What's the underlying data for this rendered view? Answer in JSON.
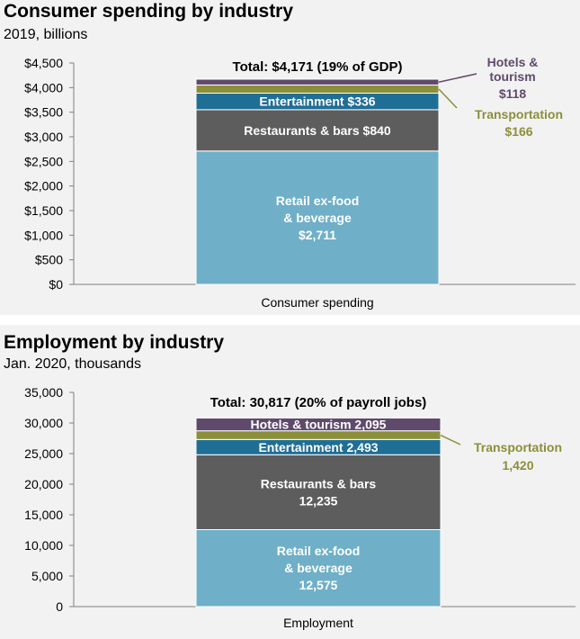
{
  "chart_data": [
    {
      "type": "bar",
      "stacked": true,
      "title": "Consumer spending by industry",
      "subtitle": "2019, billions",
      "categories": [
        "Consumer spending"
      ],
      "ylim": [
        0,
        4500
      ],
      "yticks": [
        "$0",
        "$500",
        "$1,000",
        "$1,500",
        "$2,000",
        "$2,500",
        "$3,000",
        "$3,500",
        "$4,000",
        "$4,500"
      ],
      "total_label": "Total: $4,171 (19% of GDP)",
      "series": [
        {
          "name": "Retail ex-food & beverage",
          "values": [
            2711
          ],
          "color": "#6fafc8",
          "label_lines": [
            "Retail ex-food",
            "& beverage",
            "$2,711"
          ],
          "label_pos": "inside"
        },
        {
          "name": "Restaurants & bars",
          "values": [
            840
          ],
          "color": "#5d5d5d",
          "label_lines": [
            "Restaurants & bars  $840"
          ],
          "label_pos": "inside"
        },
        {
          "name": "Entertainment",
          "values": [
            336
          ],
          "color": "#1f6e96",
          "label_lines": [
            "Entertainment  $336"
          ],
          "label_pos": "inside"
        },
        {
          "name": "Transportation",
          "values": [
            166
          ],
          "color": "#8b8f3a",
          "label_lines": [
            "Transportation",
            "$166"
          ],
          "label_pos": "callout"
        },
        {
          "name": "Hotels & tourism",
          "values": [
            118
          ],
          "color": "#5f4a6b",
          "label_lines": [
            "Hotels &",
            "tourism",
            "$118"
          ],
          "label_pos": "callout"
        }
      ]
    },
    {
      "type": "bar",
      "stacked": true,
      "title": "Employment by industry",
      "subtitle": "Jan. 2020, thousands",
      "categories": [
        "Employment"
      ],
      "ylim": [
        0,
        35000
      ],
      "yticks": [
        "0",
        "5,000",
        "10,000",
        "15,000",
        "20,000",
        "25,000",
        "30,000",
        "35,000"
      ],
      "total_label": "Total: 30,817 (20% of payroll jobs)",
      "series": [
        {
          "name": "Retail ex-food & beverage",
          "values": [
            12575
          ],
          "color": "#6fafc8",
          "label_lines": [
            "Retail ex-food",
            "& beverage",
            "12,575"
          ],
          "label_pos": "inside"
        },
        {
          "name": "Restaurants & bars",
          "values": [
            12235
          ],
          "color": "#5d5d5d",
          "label_lines": [
            "Restaurants & bars",
            "12,235"
          ],
          "label_pos": "inside"
        },
        {
          "name": "Entertainment",
          "values": [
            2493
          ],
          "color": "#1f6e96",
          "label_lines": [
            "Entertainment  2,493"
          ],
          "label_pos": "inside"
        },
        {
          "name": "Transportation",
          "values": [
            1420
          ],
          "color": "#8b8f3a",
          "label_lines": [
            "Transportation",
            "1,420"
          ],
          "label_pos": "callout"
        },
        {
          "name": "Hotels & tourism",
          "values": [
            2095
          ],
          "color": "#5f4a6b",
          "label_lines": [
            "Hotels & tourism  2,095"
          ],
          "label_pos": "inside"
        }
      ]
    }
  ]
}
